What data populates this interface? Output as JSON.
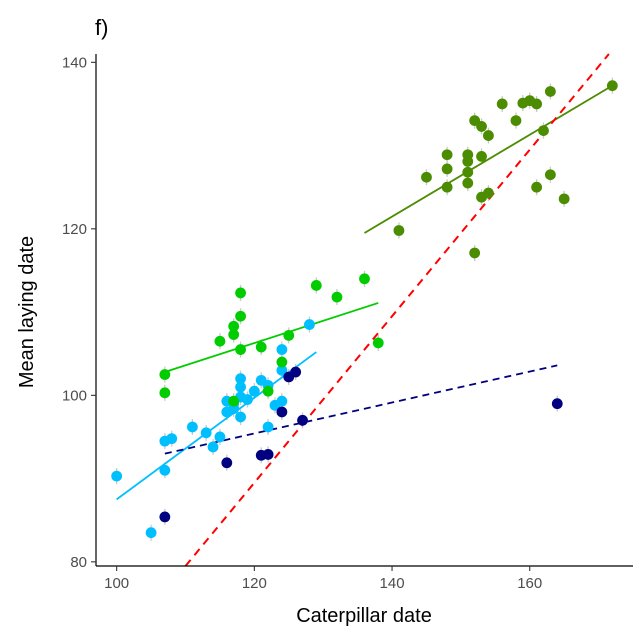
{
  "chart_data": {
    "type": "scatter",
    "panel_label": "f)",
    "xlabel": "Caterpillar date",
    "ylabel": "Mean laying date",
    "xlim": [
      97,
      175
    ],
    "ylim": [
      79.5,
      141
    ],
    "x_ticks": [
      100,
      120,
      140,
      160
    ],
    "y_ticks": [
      80,
      100,
      120,
      140
    ],
    "grid": false,
    "legend": "none",
    "series": [
      {
        "color": "#00BFFF",
        "points": [
          [
            100,
            90.3
          ],
          [
            105,
            83.5
          ],
          [
            107,
            94.5
          ],
          [
            107,
            91
          ],
          [
            108,
            94.8
          ],
          [
            111,
            96.2
          ],
          [
            113,
            95.5
          ],
          [
            114,
            93.8
          ],
          [
            115,
            95
          ],
          [
            116,
            99.3
          ],
          [
            116,
            98
          ],
          [
            117,
            99
          ],
          [
            117,
            98.4
          ],
          [
            118,
            102
          ],
          [
            118,
            101
          ],
          [
            118,
            99.8
          ],
          [
            118,
            97.4
          ],
          [
            119,
            99.5
          ],
          [
            120,
            100.5
          ],
          [
            121,
            101.8
          ],
          [
            122,
            101.2
          ],
          [
            122,
            96.2
          ],
          [
            123,
            98.8
          ],
          [
            124,
            105.5
          ],
          [
            124,
            103
          ],
          [
            124,
            99.3
          ],
          [
            128,
            108.5
          ]
        ],
        "fit": {
          "x": [
            100,
            129
          ],
          "y": [
            87.5,
            105.2
          ],
          "dashed": false
        }
      },
      {
        "color": "#00CC00",
        "points": [
          [
            107,
            102.5
          ],
          [
            107,
            100.3
          ],
          [
            115,
            106.5
          ],
          [
            117,
            108.3
          ],
          [
            117,
            107.3
          ],
          [
            117,
            99.3
          ],
          [
            118,
            112.3
          ],
          [
            118,
            109.5
          ],
          [
            118,
            105.5
          ],
          [
            121,
            105.8
          ],
          [
            122,
            100.5
          ],
          [
            124,
            104
          ],
          [
            125,
            107.2
          ],
          [
            129,
            113.2
          ],
          [
            132,
            111.8
          ],
          [
            136,
            114
          ],
          [
            138,
            106.3
          ]
        ],
        "fit": {
          "x": [
            107,
            138
          ],
          "y": [
            102.8,
            111.1
          ],
          "dashed": false
        }
      },
      {
        "color": "#000080",
        "points": [
          [
            107,
            85.4
          ],
          [
            116,
            91.9
          ],
          [
            121,
            92.8
          ],
          [
            122,
            92.9
          ],
          [
            124,
            98
          ],
          [
            125,
            102.2
          ],
          [
            126,
            102.8
          ],
          [
            127,
            97
          ],
          [
            164,
            99
          ]
        ],
        "fit": {
          "x": [
            107,
            164
          ],
          "y": [
            93,
            103.6
          ],
          "dashed": true
        }
      },
      {
        "color": "#4C8C00",
        "points": [
          [
            141,
            119.8
          ],
          [
            145,
            126.2
          ],
          [
            148,
            128.9
          ],
          [
            148,
            125
          ],
          [
            148,
            127.2
          ],
          [
            151,
            128.9
          ],
          [
            151,
            128.1
          ],
          [
            151,
            126.8
          ],
          [
            151,
            125.5
          ],
          [
            152,
            133
          ],
          [
            152,
            117.1
          ],
          [
            153,
            132.3
          ],
          [
            153,
            128.7
          ],
          [
            153,
            123.8
          ],
          [
            154,
            124.3
          ],
          [
            154,
            131.2
          ],
          [
            156,
            135
          ],
          [
            158,
            133
          ],
          [
            159,
            135.1
          ],
          [
            160,
            135.4
          ],
          [
            161,
            135
          ],
          [
            161,
            125
          ],
          [
            162,
            131.8
          ],
          [
            163,
            136.5
          ],
          [
            163,
            126.5
          ],
          [
            165,
            123.6
          ],
          [
            172,
            137.2
          ]
        ],
        "fit": {
          "x": [
            136,
            172
          ],
          "y": [
            119.5,
            137.2
          ],
          "dashed": false
        }
      }
    ],
    "reference_line": {
      "color": "#FF0000",
      "x": [
        110,
        171.5
      ],
      "y": [
        79.5,
        141
      ],
      "dashed": true
    }
  }
}
